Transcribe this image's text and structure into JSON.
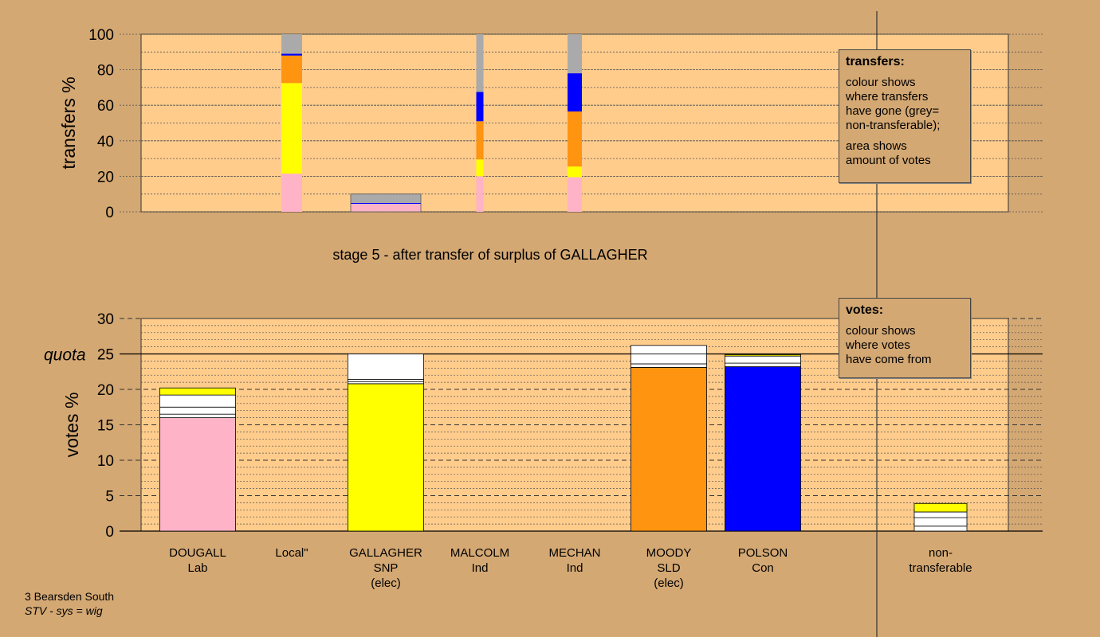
{
  "stage_title": "stage 5 - after transfer of surplus of GALLAGHER",
  "footer": {
    "ward": "3 Bearsden South",
    "system": "STV - sys = wig"
  },
  "legend_transfers": {
    "heading": "transfers:",
    "para1": "colour shows\nwhere transfers\nhave gone (grey=\nnon-transferable);",
    "para2": "area shows\namount of votes"
  },
  "legend_votes": {
    "heading": "votes:",
    "para1": "colour shows\nwhere votes\nhave come from"
  },
  "colors": {
    "background": "#d4a873",
    "plot_area": "#ffcc8c",
    "Lab": "#ffb3c6",
    "SNP": "#ffff00",
    "SLD": "#ff9410",
    "Con": "#0000ff",
    "non_transferable": "#aaaaaa",
    "white": "#ffffff"
  },
  "chart_data": [
    {
      "type": "bar",
      "name": "transfers",
      "ylabel": "transfers %",
      "ylim": [
        0,
        100
      ],
      "yticks": [
        0,
        20,
        40,
        60,
        80,
        100
      ],
      "grid": true,
      "categories": [
        "DOUGALL",
        "Local\"",
        "GALLAGHER",
        "MALCOLM",
        "MECHAN",
        "MOODY",
        "POLSON"
      ],
      "stacked_segments": [
        {
          "category": "Local\"",
          "segments": [
            {
              "color": "Lab",
              "value": 21.5
            },
            {
              "color": "SNP",
              "value": 51
            },
            {
              "color": "SLD",
              "value": 15.5
            },
            {
              "color": "Con",
              "value": 1
            },
            {
              "color": "non_transferable",
              "value": 11
            }
          ]
        },
        {
          "category": "GALLAGHER",
          "segments": [
            {
              "color": "Lab",
              "value": 4.5
            },
            {
              "color": "Con",
              "value": 0.5
            },
            {
              "color": "non_transferable",
              "value": 5
            }
          ]
        },
        {
          "category": "MALCOLM",
          "segments": [
            {
              "color": "Lab",
              "value": 20
            },
            {
              "color": "SNP",
              "value": 9.5
            },
            {
              "color": "SLD",
              "value": 21.5
            },
            {
              "color": "Con",
              "value": 16.5
            },
            {
              "color": "non_transferable",
              "value": 32.5
            }
          ]
        },
        {
          "category": "MECHAN",
          "segments": [
            {
              "color": "Lab",
              "value": 19.5
            },
            {
              "color": "SNP",
              "value": 6
            },
            {
              "color": "SLD",
              "value": 31
            },
            {
              "color": "Con",
              "value": 21.5
            },
            {
              "color": "non_transferable",
              "value": 22
            }
          ]
        }
      ]
    },
    {
      "type": "bar",
      "name": "votes",
      "ylabel": "votes %",
      "quota_label": "quota",
      "quota": 25,
      "ylim": [
        0,
        30
      ],
      "yticks": [
        0,
        5,
        10,
        15,
        20,
        25,
        30
      ],
      "grid": true,
      "candidates": [
        {
          "name": "DOUGALL",
          "party": "Lab",
          "status": "",
          "segments": [
            {
              "color": "Lab",
              "value": 16
            },
            {
              "color": "white",
              "value": 0.5
            },
            {
              "color": "white",
              "value": 1
            },
            {
              "color": "white",
              "value": 1.7
            },
            {
              "color": "SNP",
              "value": 1
            }
          ]
        },
        {
          "name": "Local\"",
          "party": "",
          "status": "",
          "segments": []
        },
        {
          "name": "GALLAGHER",
          "party": "SNP",
          "status": "(elec)",
          "segments": [
            {
              "color": "SNP",
              "value": 20.8
            },
            {
              "color": "white",
              "value": 0.3
            },
            {
              "color": "white",
              "value": 0.3
            },
            {
              "color": "white",
              "value": 3.6
            }
          ]
        },
        {
          "name": "MALCOLM",
          "party": "Ind",
          "status": "",
          "segments": []
        },
        {
          "name": "MECHAN",
          "party": "Ind",
          "status": "",
          "segments": []
        },
        {
          "name": "MOODY",
          "party": "SLD",
          "status": "(elec)",
          "segments": [
            {
              "color": "SLD",
              "value": 23.1
            },
            {
              "color": "white",
              "value": 0.5
            },
            {
              "color": "white",
              "value": 1.4
            },
            {
              "color": "white",
              "value": 1.2
            }
          ]
        },
        {
          "name": "POLSON",
          "party": "Con",
          "status": "",
          "segments": [
            {
              "color": "Con",
              "value": 23.2
            },
            {
              "color": "white",
              "value": 0.5
            },
            {
              "color": "white",
              "value": 1.0
            },
            {
              "color": "SNP",
              "value": 0.2
            }
          ]
        },
        {
          "name": "non-",
          "party": "transferable",
          "status": "",
          "segments": [
            {
              "color": "white",
              "value": 0.7
            },
            {
              "color": "white",
              "value": 1.2
            },
            {
              "color": "white",
              "value": 0.8
            },
            {
              "color": "SNP",
              "value": 1.2
            }
          ]
        }
      ]
    }
  ]
}
